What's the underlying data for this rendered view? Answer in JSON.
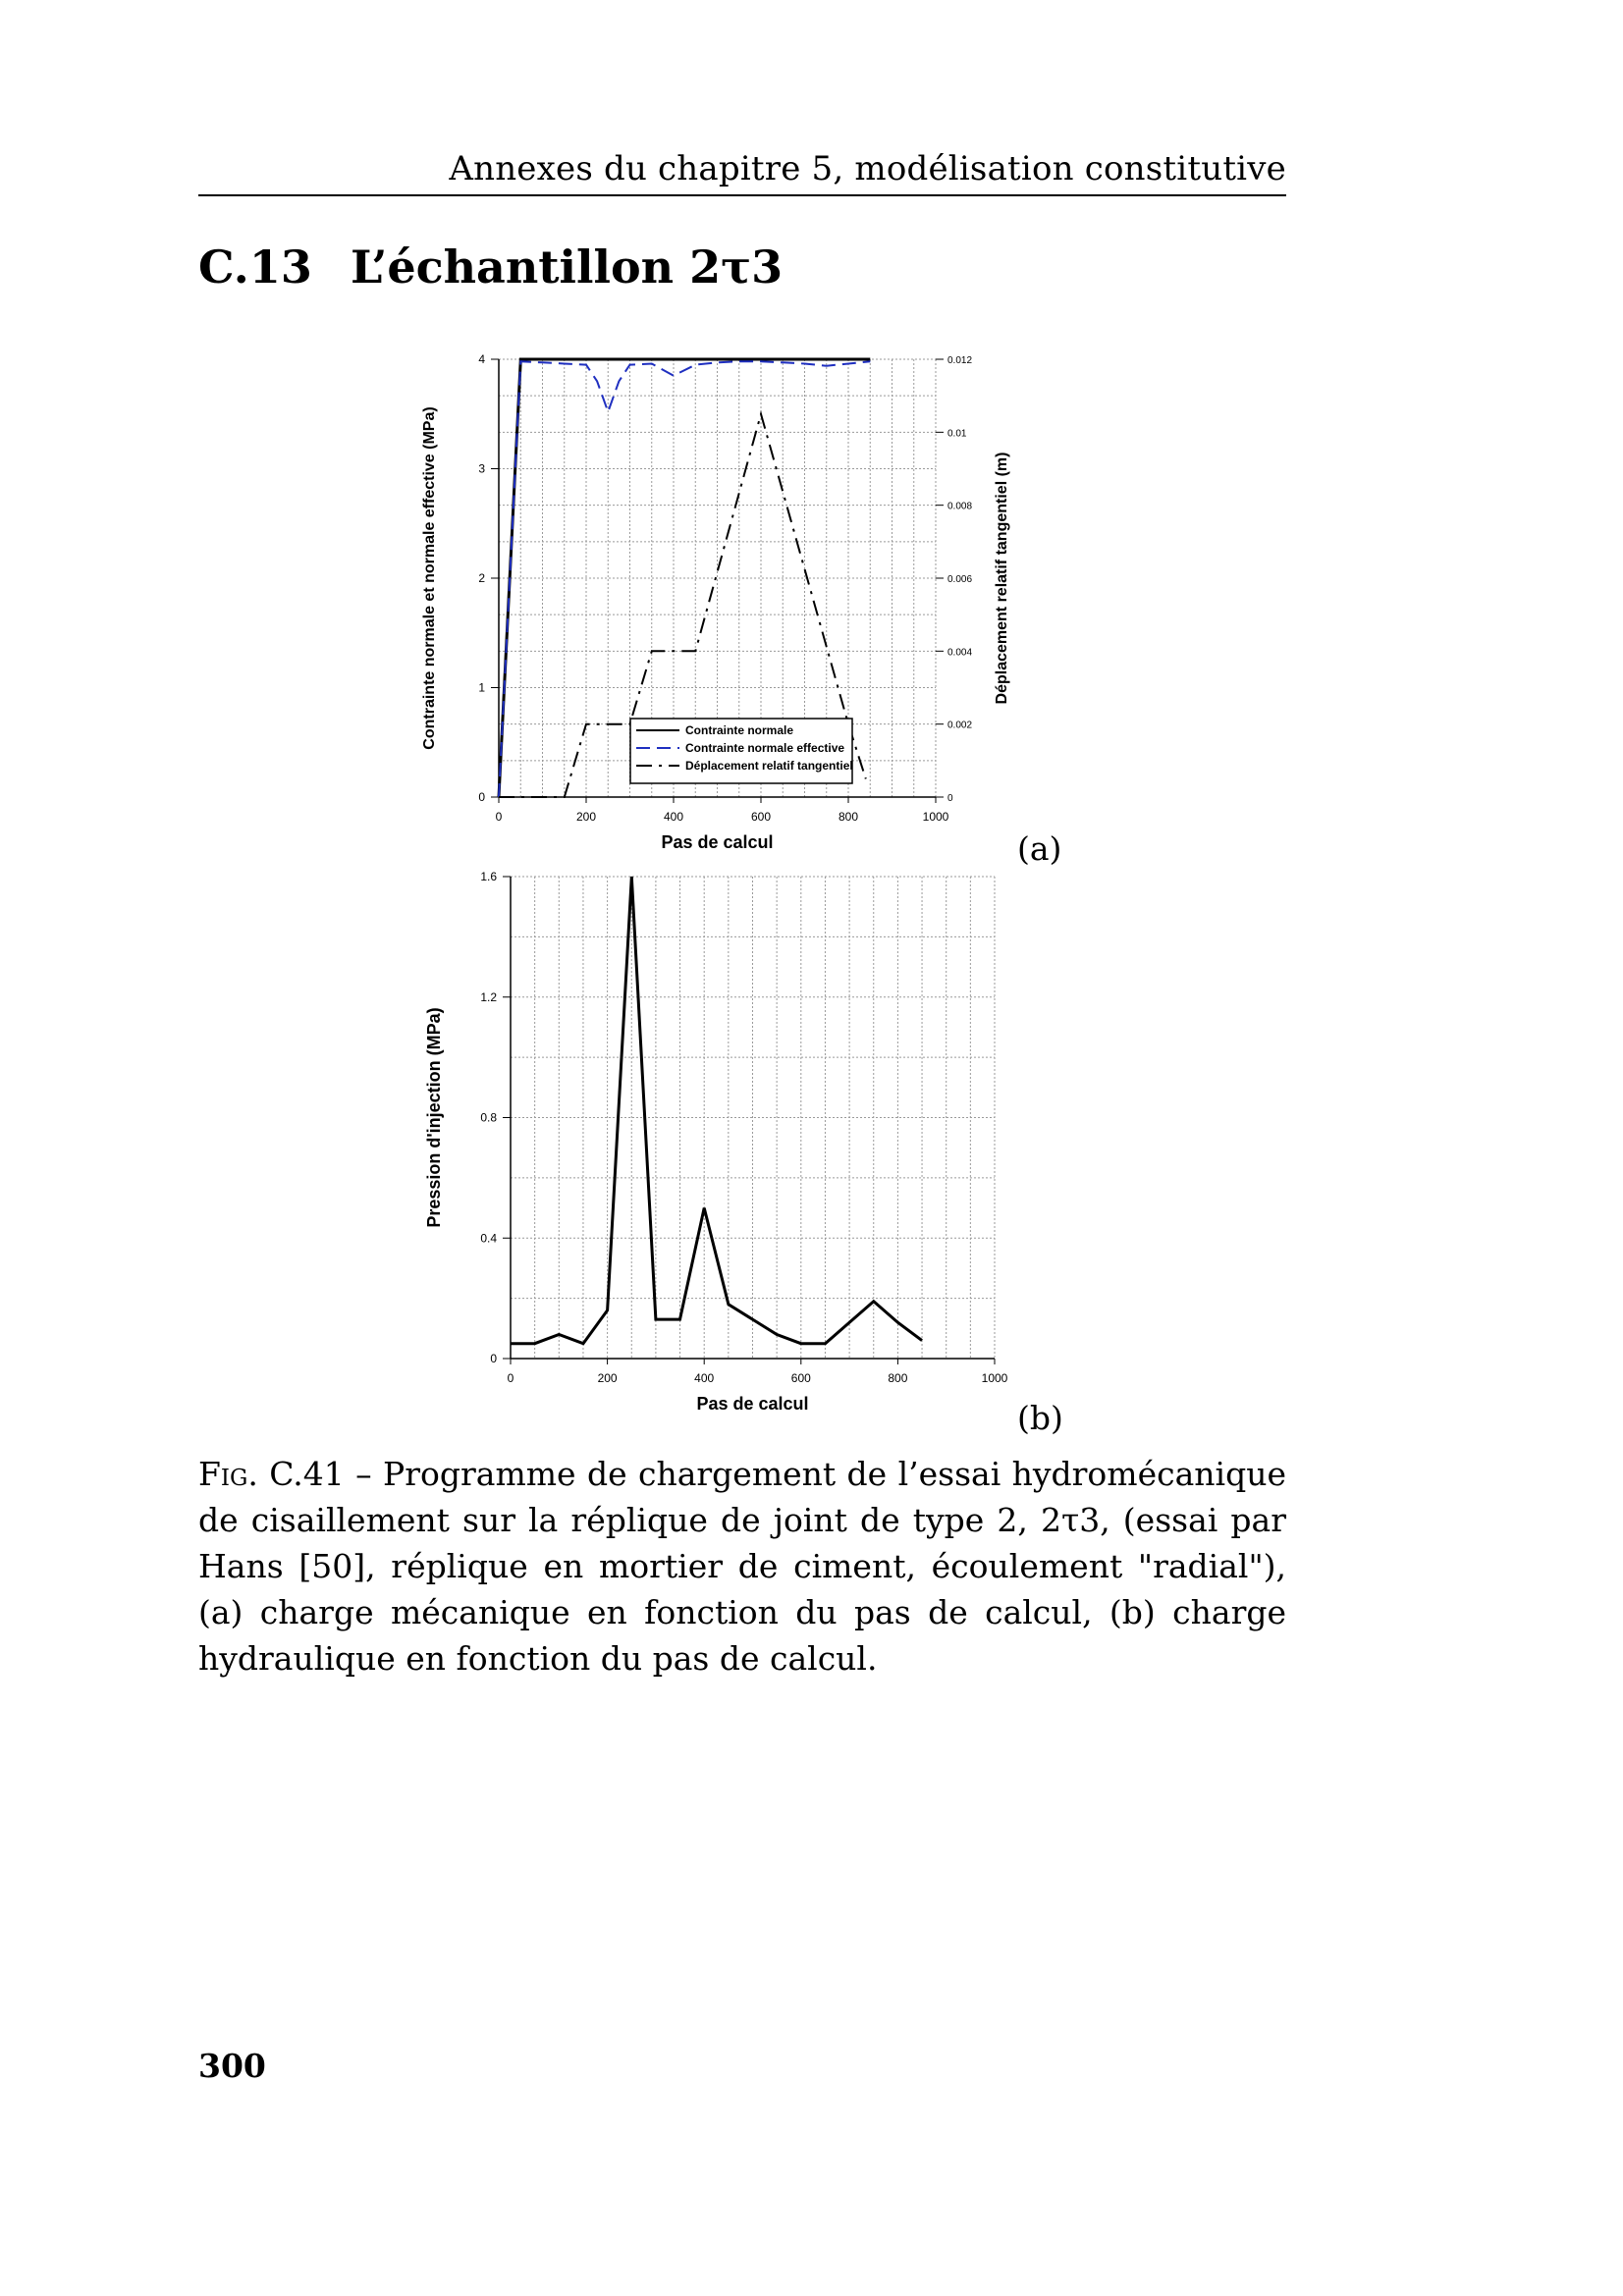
{
  "header": {
    "running_title": "Annexes du chapitre 5, modélisation constitutive"
  },
  "section": {
    "number": "C.13",
    "title": "L’échantillon 2τ3"
  },
  "figure": {
    "panel_a_label": "(a)",
    "panel_b_label": "(b)",
    "caption_prefix": "Fig. C.41",
    "caption_text": " – Programme de chargement de l’essai hydromécanique de cisaillement sur la réplique de joint de type 2, 2τ3, (essai par Hans [50], réplique en mortier de ciment, écoulement \"radial\"), (a) charge mécanique en fonction du pas de calcul, (b) charge hydraulique en fonction du pas de calcul."
  },
  "page_number": "300",
  "chart_data": [
    {
      "type": "line",
      "xlabel": "Pas de calcul",
      "ylabel": "Contrainte normale et normale effective (MPa)",
      "y2label": "Déplacement relatif tangentiel (m)",
      "xlim": [
        0,
        1000
      ],
      "ylim": [
        0,
        4
      ],
      "y2lim": [
        0,
        0.012
      ],
      "x_ticks": [
        "0",
        "200",
        "400",
        "600",
        "800",
        "1000"
      ],
      "y_ticks": [
        "0",
        "1",
        "2",
        "3",
        "4"
      ],
      "y2_ticks": [
        "0",
        "0.002",
        "0.004",
        "0.006",
        "0.008",
        "0.01",
        "0.012"
      ],
      "legend_position": "bottom-right",
      "grid": true,
      "series": [
        {
          "name": "Contrainte normale",
          "axis": "left",
          "style": "solid",
          "color": "#000000",
          "x": [
            0,
            50,
            850
          ],
          "y": [
            0,
            4,
            4
          ]
        },
        {
          "name": "Contrainte normale effective",
          "axis": "left",
          "style": "dashed",
          "color": "#1f2fc0",
          "x": [
            0,
            50,
            100,
            150,
            200,
            225,
            250,
            275,
            300,
            350,
            400,
            450,
            500,
            550,
            600,
            650,
            700,
            750,
            800,
            850
          ],
          "y": [
            0,
            3.98,
            3.97,
            3.96,
            3.95,
            3.8,
            3.52,
            3.8,
            3.95,
            3.96,
            3.85,
            3.95,
            3.97,
            3.98,
            3.98,
            3.97,
            3.96,
            3.94,
            3.96,
            3.98
          ]
        },
        {
          "name": "Déplacement relatif tangentiel",
          "axis": "right",
          "style": "dashdot",
          "color": "#000000",
          "x": [
            0,
            100,
            150,
            200,
            300,
            350,
            400,
            450,
            600,
            800,
            840
          ],
          "y": [
            0,
            0,
            0,
            0.002,
            0.002,
            0.004,
            0.004,
            0.004,
            0.0105,
            0.002,
            0.0005
          ]
        }
      ]
    },
    {
      "type": "line",
      "xlabel": "Pas de calcul",
      "ylabel": "Pression d'injection (MPa)",
      "xlim": [
        0,
        1000
      ],
      "ylim": [
        0,
        1.6
      ],
      "x_ticks": [
        "0",
        "200",
        "400",
        "600",
        "800",
        "1000"
      ],
      "y_ticks": [
        "0",
        "0.4",
        "0.8",
        "1.2",
        "1.6"
      ],
      "grid": true,
      "series": [
        {
          "style": "solid",
          "color": "#000000",
          "x": [
            0,
            50,
            100,
            150,
            200,
            250,
            300,
            350,
            400,
            450,
            500,
            550,
            600,
            650,
            700,
            750,
            800,
            850
          ],
          "y": [
            0.05,
            0.05,
            0.08,
            0.05,
            0.16,
            1.6,
            0.13,
            0.13,
            0.5,
            0.18,
            0.13,
            0.08,
            0.05,
            0.05,
            0.12,
            0.19,
            0.12,
            0.06
          ]
        }
      ]
    }
  ]
}
